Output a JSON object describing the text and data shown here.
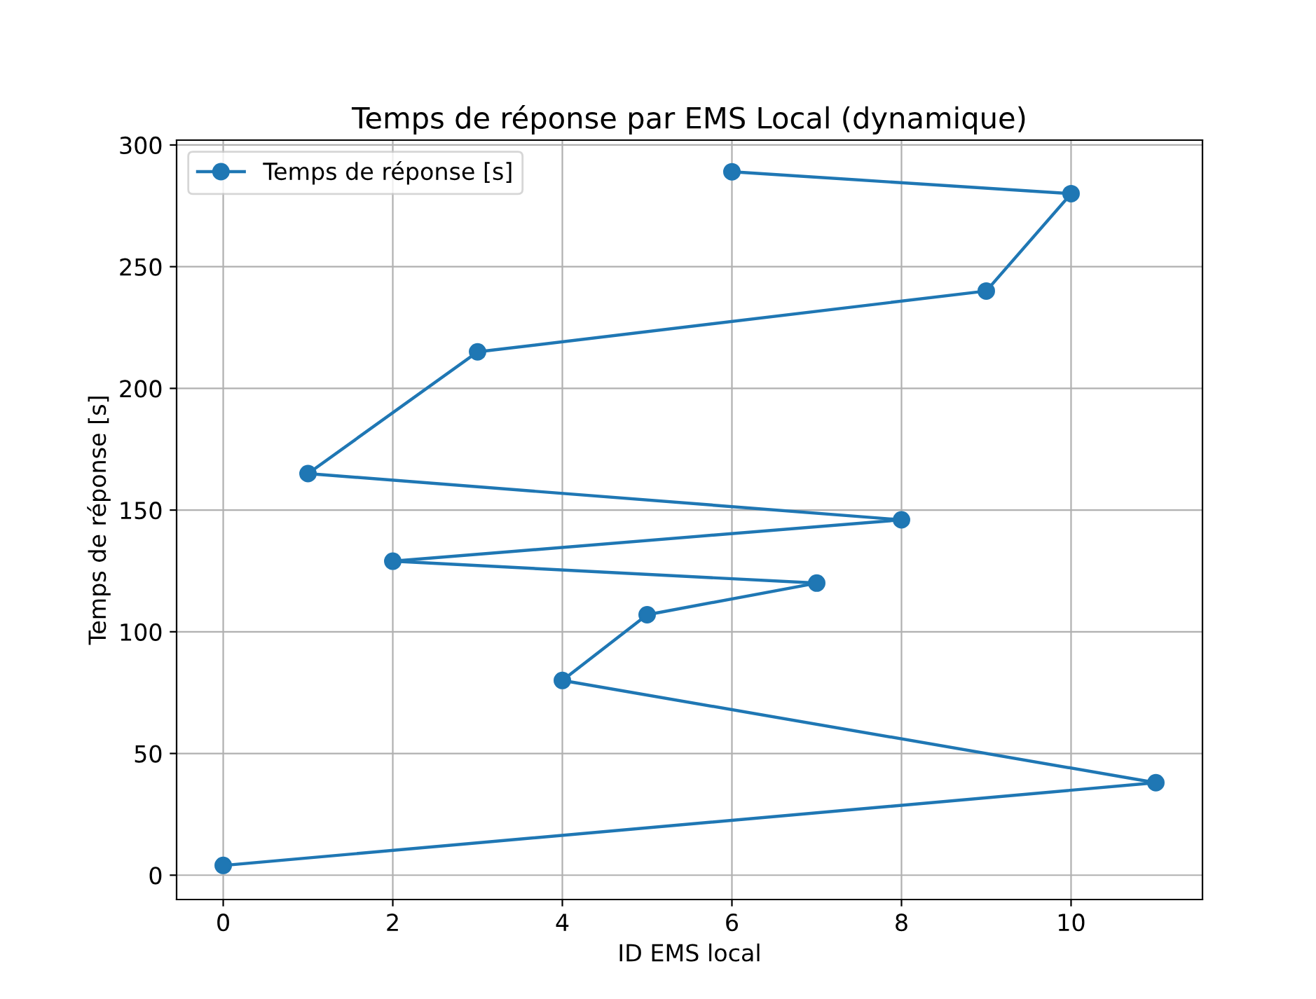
{
  "chart_data": {
    "type": "line",
    "title": "Temps de réponse par EMS Local (dynamique)",
    "xlabel": "ID EMS local",
    "ylabel": "Temps de réponse [s]",
    "series": [
      {
        "name": "Temps de réponse [s]",
        "color": "#1f77b4",
        "x": [
          0,
          11,
          4,
          5,
          7,
          2,
          8,
          1,
          3,
          9,
          10,
          6
        ],
        "values": [
          4,
          38,
          80,
          107,
          120,
          129,
          146,
          165,
          215,
          240,
          280,
          289
        ]
      }
    ],
    "xlim": [
      -0.55,
      11.55
    ],
    "ylim": [
      -10,
      302
    ],
    "xticks": [
      0,
      2,
      4,
      6,
      8,
      10
    ],
    "yticks": [
      0,
      50,
      100,
      150,
      200,
      250,
      300
    ],
    "grid": true,
    "legend": "top left",
    "marker": "circle",
    "line_style": "solid"
  }
}
